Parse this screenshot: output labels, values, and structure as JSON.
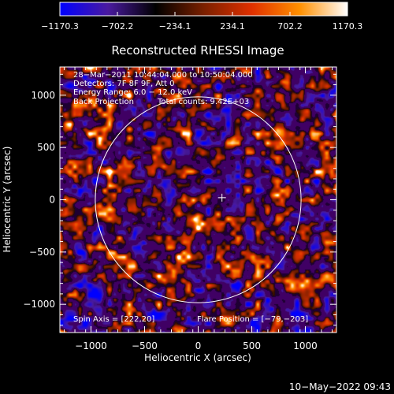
{
  "chart_data": {
    "type": "heatmap",
    "title": "Reconstructed RHESSI Image",
    "xlabel": "Heliocentric X (arcsec)",
    "ylabel": "Heliocentric Y (arcsec)",
    "xlim": [
      -1290,
      1290
    ],
    "ylim": [
      -1270,
      1270
    ],
    "xticks": [
      -1000,
      -500,
      0,
      500,
      1000
    ],
    "xtick_labels": [
      "−1000",
      "−500",
      "0",
      "500",
      "1000"
    ],
    "yticks": [
      -1000,
      -500,
      0,
      500,
      1000
    ],
    "ytick_labels": [
      "−1000",
      "−500",
      "0",
      "500",
      "1000"
    ],
    "colorbar": {
      "range": [
        -1170.3,
        1170.3
      ],
      "ticks": [
        -1170.3,
        -702.2,
        -234.1,
        234.1,
        702.2,
        1170.3
      ],
      "tick_labels": [
        "−1170.3",
        "−702.2",
        "−234.1",
        "234.1",
        "702.2",
        "1170.3"
      ],
      "colormap": [
        "#0000ff",
        "#4a1aa0",
        "#000000",
        "#7a2000",
        "#e03000",
        "#ff9000",
        "#ffffff"
      ]
    },
    "annotations": {
      "time_range": "28−Mar−2011 10:44:04.000 to 10:50:04.000",
      "detectors": "Detectors: 7F 8F 9F, Att 0",
      "energy_range": "Energy Range: 6.0 − 12.0 keV",
      "method": "Back Projection",
      "total_counts": "Total counts: 9.42E+03",
      "spin_axis": "Spin Axis = [222,20]",
      "flare_position": "Flare Position = [−79,−203]"
    },
    "solar_disk": {
      "center": [
        0,
        0
      ],
      "radius": 960
    },
    "spin_axis_marker": [
      222,
      20
    ]
  },
  "footer": {
    "timestamp": "10−May−2022 09:43"
  }
}
